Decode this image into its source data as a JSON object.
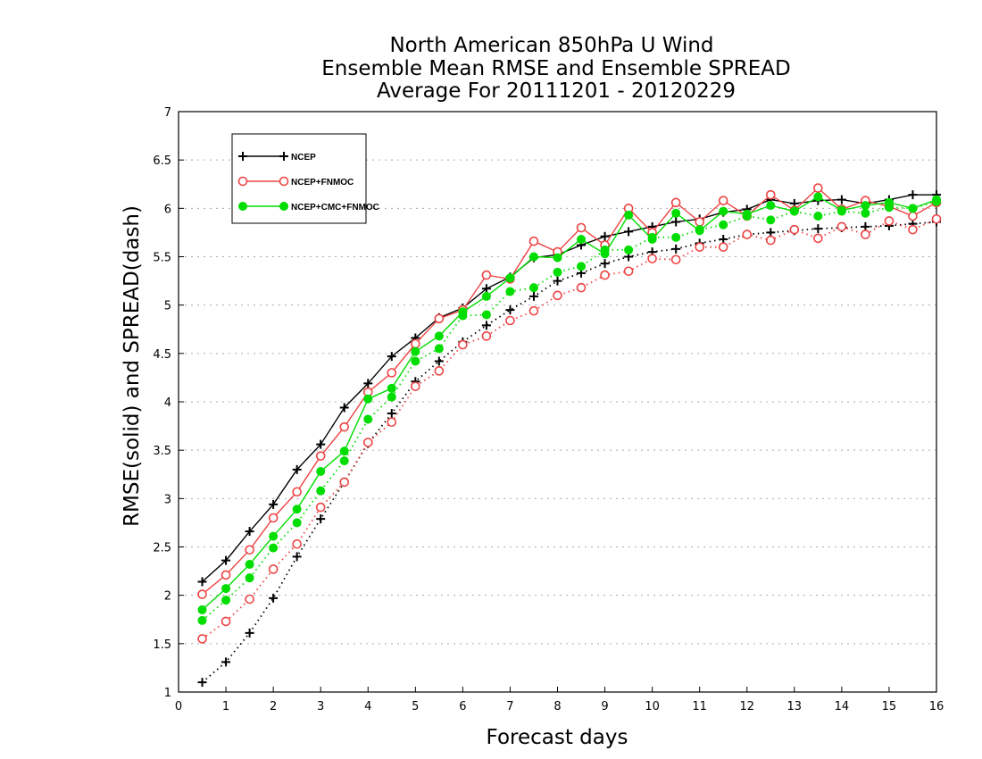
{
  "chart_data": {
    "type": "line",
    "title": [
      "North American 850hPa U Wind",
      "Ensemble Mean RMSE and Ensemble SPREAD",
      "Average For 20111201 - 20120229"
    ],
    "xlabel": "Forecast days",
    "ylabel": "RMSE(solid) and SPREAD(dash)",
    "xlim": [
      0,
      16
    ],
    "ylim": [
      1,
      7
    ],
    "xticks": [
      "0",
      "1",
      "2",
      "3",
      "4",
      "5",
      "6",
      "7",
      "8",
      "9",
      "10",
      "11",
      "12",
      "13",
      "14",
      "15",
      "16"
    ],
    "yticks": [
      "1",
      "1.5",
      "2",
      "2.5",
      "3",
      "3.5",
      "4",
      "4.5",
      "5",
      "5.5",
      "6",
      "6.5",
      "7"
    ],
    "grid": true,
    "legend_position": "top-left",
    "x": [
      0.5,
      1,
      1.5,
      2,
      2.5,
      3,
      3.5,
      4,
      4.5,
      5,
      5.5,
      6,
      6.5,
      7,
      7.5,
      8,
      8.5,
      9,
      9.5,
      10,
      10.5,
      11,
      11.5,
      12,
      12.5,
      13,
      13.5,
      14,
      14.5,
      15,
      15.5,
      16
    ],
    "series": [
      {
        "name": "NCEP",
        "color": "#000000",
        "marker": "plus",
        "rmse": [
          2.14,
          2.36,
          2.66,
          2.94,
          3.3,
          3.56,
          3.94,
          4.19,
          4.47,
          4.66,
          4.87,
          4.97,
          5.17,
          5.29,
          5.49,
          5.52,
          5.62,
          5.71,
          5.76,
          5.81,
          5.86,
          5.89,
          5.96,
          5.99,
          6.09,
          6.05,
          6.08,
          6.09,
          6.05,
          6.09,
          6.14,
          6.14
        ],
        "spread": [
          1.1,
          1.31,
          1.61,
          1.97,
          2.4,
          2.79,
          3.17,
          3.57,
          3.88,
          4.21,
          4.42,
          4.62,
          4.79,
          4.95,
          5.09,
          5.25,
          5.33,
          5.43,
          5.5,
          5.55,
          5.58,
          5.64,
          5.68,
          5.73,
          5.75,
          5.77,
          5.79,
          5.8,
          5.81,
          5.82,
          5.84,
          5.86
        ]
      },
      {
        "name": "NCEP+FNMOC",
        "color": "#ee4444",
        "marker": "open-circle",
        "rmse": [
          2.01,
          2.21,
          2.47,
          2.8,
          3.07,
          3.44,
          3.74,
          4.1,
          4.3,
          4.6,
          4.86,
          4.95,
          5.31,
          5.27,
          5.66,
          5.55,
          5.8,
          5.62,
          6.0,
          5.75,
          6.06,
          5.86,
          6.08,
          5.92,
          6.14,
          5.98,
          6.21,
          5.99,
          6.08,
          6.02,
          5.92,
          6.06
        ],
        "spread": [
          1.55,
          1.73,
          1.96,
          2.27,
          2.53,
          2.91,
          3.17,
          3.58,
          3.79,
          4.16,
          4.32,
          4.59,
          4.68,
          4.84,
          4.94,
          5.1,
          5.18,
          5.31,
          5.35,
          5.48,
          5.47,
          5.6,
          5.6,
          5.73,
          5.67,
          5.78,
          5.69,
          5.81,
          5.73,
          5.87,
          5.78,
          5.89
        ]
      },
      {
        "name": "NCEP+CMC+FNMOC",
        "color": "#00dd00",
        "marker": "filled-circle",
        "rmse": [
          1.85,
          2.07,
          2.32,
          2.61,
          2.89,
          3.28,
          3.49,
          4.03,
          4.14,
          4.52,
          4.68,
          4.93,
          5.09,
          5.28,
          5.5,
          5.49,
          5.68,
          5.53,
          5.93,
          5.68,
          5.95,
          5.77,
          5.97,
          5.94,
          6.03,
          5.97,
          6.12,
          5.98,
          6.03,
          6.06,
          6.0,
          6.09
        ],
        "spread": [
          1.74,
          1.95,
          2.18,
          2.49,
          2.75,
          3.08,
          3.39,
          3.82,
          4.05,
          4.42,
          4.55,
          4.89,
          4.9,
          5.14,
          5.18,
          5.34,
          5.4,
          5.57,
          5.57,
          5.7,
          5.7,
          5.78,
          5.83,
          5.92,
          5.88,
          5.97,
          5.92,
          5.97,
          5.95,
          6.01,
          6.0,
          6.07
        ]
      }
    ]
  }
}
